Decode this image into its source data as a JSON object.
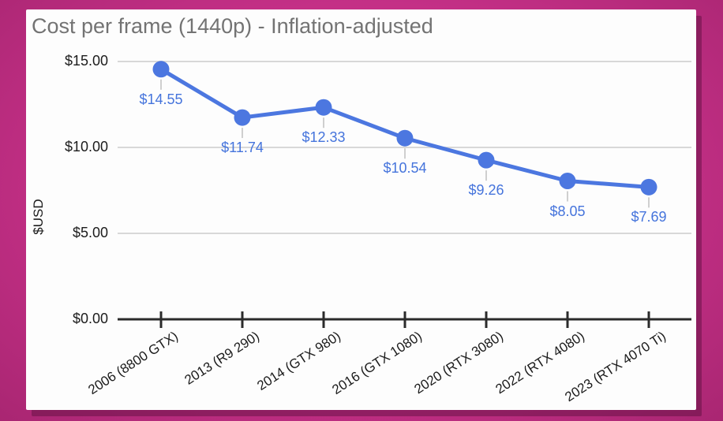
{
  "window": {
    "background_color": "#c53087"
  },
  "chart_data": {
    "type": "line",
    "title": "Cost per frame (1440p) - Inflation-adjusted",
    "ylabel": "$USD",
    "xlabel": "",
    "categories": [
      "2006 (8800 GTX)",
      "2013 (R9 290)",
      "2014 (GTX 980)",
      "2016 (GTX 1080)",
      "2020 (RTX 3080)",
      "2022 (RTX 4080)",
      "2023 (RTX 4070 Ti)"
    ],
    "values": [
      14.55,
      11.74,
      12.33,
      10.54,
      9.26,
      8.05,
      7.69
    ],
    "point_labels": [
      "$14.55",
      "$11.74",
      "$12.33",
      "$10.54",
      "$9.26",
      "$8.05",
      "$7.69"
    ],
    "yticks": [
      0,
      5,
      10,
      15
    ],
    "ytick_labels": [
      "$0.00",
      "$5.00",
      "$10.00",
      "$15.00"
    ],
    "ylim": [
      0,
      15
    ],
    "grid": "horizontal-only",
    "legend": "none",
    "series_color": "#4c77e0",
    "point_label_color": "#4574dc",
    "gridline_color": "#d8d8d8",
    "leader_line_color": "#cfcfcf",
    "axis_color": "#2b2b2b",
    "title_color": "#737373"
  }
}
